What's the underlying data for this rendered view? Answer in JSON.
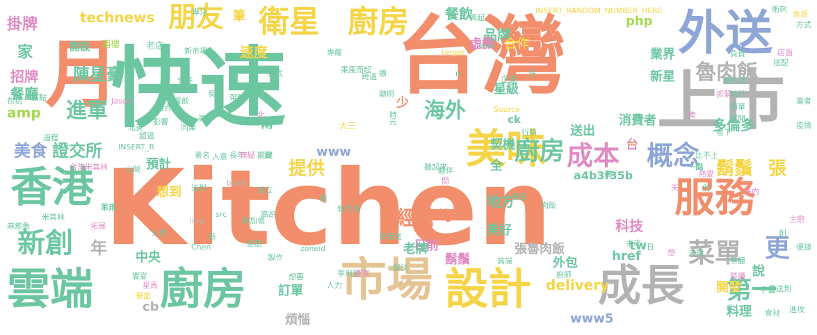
{
  "palette": {
    "orange": "#F28E6B",
    "green": "#6CC7A1",
    "blue": "#8EA6D6",
    "pink": "#E08BC4",
    "lime": "#A6D854",
    "yellow": "#F5D547",
    "tan": "#E5C494",
    "gray": "#B3B3B3"
  },
  "words": [
    {
      "text": "Kitchen",
      "color": "orange"
    },
    {
      "text": "台灣",
      "color": "orange"
    },
    {
      "text": "快速",
      "color": "green"
    },
    {
      "text": "月",
      "color": "orange"
    },
    {
      "text": "上市",
      "color": "gray"
    },
    {
      "text": "外送",
      "color": "blue"
    },
    {
      "text": "香港",
      "color": "green"
    },
    {
      "text": "雲端",
      "color": "green"
    },
    {
      "text": "廚房",
      "color": "green"
    },
    {
      "text": "市場",
      "color": "tan"
    },
    {
      "text": "設計",
      "color": "yellow"
    },
    {
      "text": "成長",
      "color": "gray"
    },
    {
      "text": "服務",
      "color": "orange"
    },
    {
      "text": "美味",
      "color": "yellow"
    },
    {
      "text": "衛星",
      "color": "yellow"
    },
    {
      "text": "廚房",
      "color": "yellow"
    },
    {
      "text": "朋友",
      "color": "yellow"
    },
    {
      "text": "成本",
      "color": "pink"
    },
    {
      "text": "概念",
      "color": "blue"
    },
    {
      "text": "新創",
      "color": "green"
    },
    {
      "text": "菜單",
      "color": "gray"
    },
    {
      "text": "第一",
      "color": "green"
    },
    {
      "text": "更",
      "color": "blue"
    },
    {
      "text": "廚房",
      "color": "green"
    },
    {
      "text": "海外",
      "color": "green"
    },
    {
      "text": "魯肉飯",
      "color": "gray"
    },
    {
      "text": "鬍鬚",
      "color": "yellow"
    },
    {
      "text": "張",
      "color": "yellow"
    },
    {
      "text": "進軍",
      "color": "green"
    },
    {
      "text": "掛牌",
      "color": "pink"
    },
    {
      "text": "經營",
      "color": "orange"
    },
    {
      "text": "提供",
      "color": "yellow"
    },
    {
      "text": "美食",
      "color": "blue"
    },
    {
      "text": "證交所",
      "color": "green"
    },
    {
      "text": "家",
      "color": "green"
    },
    {
      "text": "年",
      "color": "gray"
    },
    {
      "text": "陳星豪",
      "color": "green"
    },
    {
      "text": "technews",
      "color": "yellow"
    },
    {
      "text": "品牌",
      "color": "green"
    },
    {
      "text": "餐飲",
      "color": "green"
    },
    {
      "text": "速度",
      "color": "yellow"
    },
    {
      "text": "招牌",
      "color": "pink"
    },
    {
      "text": "餐廳",
      "color": "green"
    },
    {
      "text": "amp",
      "color": "lime"
    },
    {
      "text": "科技",
      "color": "pink"
    },
    {
      "text": "地方",
      "color": "green"
    },
    {
      "text": "平均",
      "color": "orange"
    },
    {
      "text": "張魯肉飯",
      "color": "gray"
    },
    {
      "text": "delivery",
      "color": "yellow"
    },
    {
      "text": "外包",
      "color": "green"
    },
    {
      "text": "www5",
      "color": "blue"
    },
    {
      "text": "開發",
      "color": "yellow"
    },
    {
      "text": "料理",
      "color": "green"
    },
    {
      "text": "多倫多",
      "color": "green"
    },
    {
      "text": "送出",
      "color": "green"
    },
    {
      "text": "星級",
      "color": "green"
    },
    {
      "text": "新星",
      "color": "green"
    },
    {
      "text": "業界",
      "color": "green"
    },
    {
      "text": "合作",
      "color": "yellow"
    },
    {
      "text": "虛擬",
      "color": "pink"
    },
    {
      "text": "php",
      "color": "lime"
    },
    {
      "text": "契機",
      "color": "green"
    },
    {
      "text": "全",
      "color": "green"
    },
    {
      "text": "www",
      "color": "blue"
    },
    {
      "text": "兩",
      "color": "green"
    },
    {
      "text": "少",
      "color": "orange"
    },
    {
      "text": "中央",
      "color": "green"
    },
    {
      "text": "想到",
      "color": "yellow"
    },
    {
      "text": "預計",
      "color": "green"
    },
    {
      "text": "美好",
      "color": "green"
    },
    {
      "text": "鬍鬚",
      "color": "pink"
    },
    {
      "text": "a4b3f35b",
      "color": "green"
    },
    {
      "text": "tw",
      "color": "green"
    },
    {
      "text": "cb",
      "color": "gray"
    },
    {
      "text": "訂單",
      "color": "green"
    },
    {
      "text": "煩惱",
      "color": "gray"
    },
    {
      "text": "日前",
      "color": "pink"
    },
    {
      "text": "老牌",
      "color": "green"
    },
    {
      "text": "筆",
      "color": "yellow"
    },
    {
      "text": "href",
      "color": "green"
    },
    {
      "text": "消費者",
      "color": "green"
    },
    {
      "text": "說",
      "color": "green"
    },
    {
      "text": "台",
      "color": "pink"
    },
    {
      "text": "ck",
      "color": "green"
    },
    {
      "text": "開設",
      "color": "green"
    },
    {
      "text": "酒樓",
      "color": "lime"
    },
    {
      "text": "老店",
      "color": "green"
    },
    {
      "text": "新市場",
      "color": "green"
    },
    {
      "text": "專注",
      "color": "green"
    },
    {
      "text": "衝刺",
      "color": "green"
    },
    {
      "text": "INSERT_RANDOM_NUMBER_HERE",
      "color": "yellow"
    },
    {
      "text": "食語",
      "color": "yellow"
    },
    {
      "text": "方式",
      "color": "green"
    },
    {
      "text": "店面",
      "color": "pink"
    },
    {
      "text": "搭配",
      "color": "green"
    },
    {
      "text": "負責",
      "color": "green"
    },
    {
      "text": "潮水濱",
      "color": "green"
    },
    {
      "text": "執行",
      "color": "green"
    },
    {
      "text": "簡單",
      "color": "green"
    },
    {
      "text": "展開",
      "color": "green"
    },
    {
      "text": "業者",
      "color": "green"
    },
    {
      "text": "疫情",
      "color": "green"
    },
    {
      "text": "大三",
      "color": "yellow"
    },
    {
      "text": "Jason",
      "color": "pink"
    },
    {
      "text": "過程",
      "color": "green"
    },
    {
      "text": "INSERT_R",
      "color": "green"
    },
    {
      "text": "北美",
      "color": "green"
    },
    {
      "text": "台灣米其林",
      "color": "pink"
    },
    {
      "text": "山賊",
      "color": "green"
    },
    {
      "text": "不用",
      "color": "green"
    },
    {
      "text": "米其林",
      "color": "green"
    },
    {
      "text": "麻癒魯",
      "color": "green"
    },
    {
      "text": "拓展",
      "color": "pink"
    },
    {
      "text": "人事",
      "color": "green"
    },
    {
      "text": "鉅額",
      "color": "green"
    },
    {
      "text": "製作",
      "color": "green"
    },
    {
      "text": "解決",
      "color": "green"
    },
    {
      "text": "享用到",
      "color": "green"
    },
    {
      "text": "zoneid",
      "color": "green"
    },
    {
      "text": "新加坡",
      "color": "green"
    },
    {
      "text": "執行長",
      "color": "green"
    },
    {
      "text": "菲律賓",
      "color": "green"
    },
    {
      "text": "高昂",
      "color": "green"
    },
    {
      "text": "src",
      "color": "green"
    },
    {
      "text": "img",
      "color": "gray"
    },
    {
      "text": "_blank",
      "color": "gray"
    },
    {
      "text": "送到",
      "color": "green"
    },
    {
      "text": "肉飯",
      "color": "green"
    },
    {
      "text": "廚師",
      "color": "green"
    },
    {
      "text": "華麗",
      "color": "green"
    },
    {
      "text": "陸續",
      "color": "pink"
    },
    {
      "text": "傳送到",
      "color": "green"
    },
    {
      "text": "進攻",
      "color": "green"
    },
    {
      "text": "食材",
      "color": "green"
    },
    {
      "text": "手藝",
      "color": "green"
    },
    {
      "text": "主廚",
      "color": "pink"
    },
    {
      "text": "在內",
      "color": "pink"
    },
    {
      "text": "便捷",
      "color": "green"
    },
    {
      "text": "想",
      "color": "pink"
    },
    {
      "text": "未能",
      "color": "green"
    },
    {
      "text": "未來",
      "color": "green"
    },
    {
      "text": "成立",
      "color": "green"
    },
    {
      "text": "企業",
      "color": "green"
    },
    {
      "text": "Source",
      "color": "yellow"
    },
    {
      "text": "target",
      "color": "yellow"
    },
    {
      "text": "聰明",
      "color": "green"
    },
    {
      "text": "跨過",
      "color": "green"
    },
    {
      "text": "模式",
      "color": "green"
    },
    {
      "text": "也許",
      "color": "green"
    },
    {
      "text": "假設",
      "color": "green"
    },
    {
      "text": "帶動",
      "color": "green"
    },
    {
      "text": "專屬",
      "color": "green"
    },
    {
      "text": "乘風而起",
      "color": "green"
    },
    {
      "text": "時",
      "color": "green"
    },
    {
      "text": "元",
      "color": "green"
    },
    {
      "text": "行銷",
      "color": "green"
    },
    {
      "text": "一點",
      "color": "green"
    },
    {
      "text": "比不上",
      "color": "green"
    },
    {
      "text": "聽起來",
      "color": "green"
    },
    {
      "text": "夥伴",
      "color": "green"
    },
    {
      "text": "需",
      "color": "green"
    },
    {
      "text": "興起",
      "color": "green"
    },
    {
      "text": "擴",
      "color": "green"
    },
    {
      "text": "住",
      "color": "green"
    },
    {
      "text": "產業",
      "color": "pink"
    },
    {
      "text": "人力",
      "color": "green"
    },
    {
      "text": "想要",
      "color": "green"
    },
    {
      "text": "饗宴",
      "color": "green"
    },
    {
      "text": "星馬",
      "color": "pink"
    },
    {
      "text": "餐盒",
      "color": "yellow"
    },
    {
      "text": "Chen",
      "color": "green"
    },
    {
      "text": "包括",
      "color": "green"
    },
    {
      "text": "痛點",
      "color": "green"
    },
    {
      "text": "亮",
      "color": "green"
    },
    {
      "text": "著名",
      "color": "green"
    },
    {
      "text": "人意",
      "color": "green"
    },
    {
      "text": "長年",
      "color": "green"
    },
    {
      "text": "無疑",
      "color": "pink"
    },
    {
      "text": "關鍵",
      "color": "green"
    },
    {
      "text": "餐飲",
      "color": "green"
    },
    {
      "text": "適合",
      "color": "green"
    },
    {
      "text": "影響",
      "color": "green"
    },
    {
      "text": "超過",
      "color": "green"
    },
    {
      "text": "同樂",
      "color": "green"
    },
    {
      "text": "抓緊",
      "color": "pink"
    },
    {
      "text": "省下",
      "color": "green"
    },
    {
      "text": "熱愛",
      "color": "pink"
    },
    {
      "text": "例",
      "color": "green"
    },
    {
      "text": "開",
      "color": "green"
    },
    {
      "text": "南",
      "color": "pink"
    },
    {
      "text": "北",
      "color": "pink"
    },
    {
      "text": "n",
      "color": "green"
    },
    {
      "text": "a",
      "color": "yellow"
    },
    {
      "text": "天",
      "color": "pink"
    },
    {
      "text": "間",
      "color": "pink"
    },
    {
      "text": "日",
      "color": "green"
    },
    {
      "text": "新",
      "color": "green"
    },
    {
      "text": "美式",
      "color": "green"
    },
    {
      "text": "avw",
      "color": "green"
    },
    {
      "text": "樞紐",
      "color": "green"
    },
    {
      "text": "冀",
      "color": "green"
    },
    {
      "text": "聽",
      "color": "green"
    },
    {
      "text": "創",
      "color": "green"
    },
    {
      "text": "高端",
      "color": "green"
    }
  ]
}
